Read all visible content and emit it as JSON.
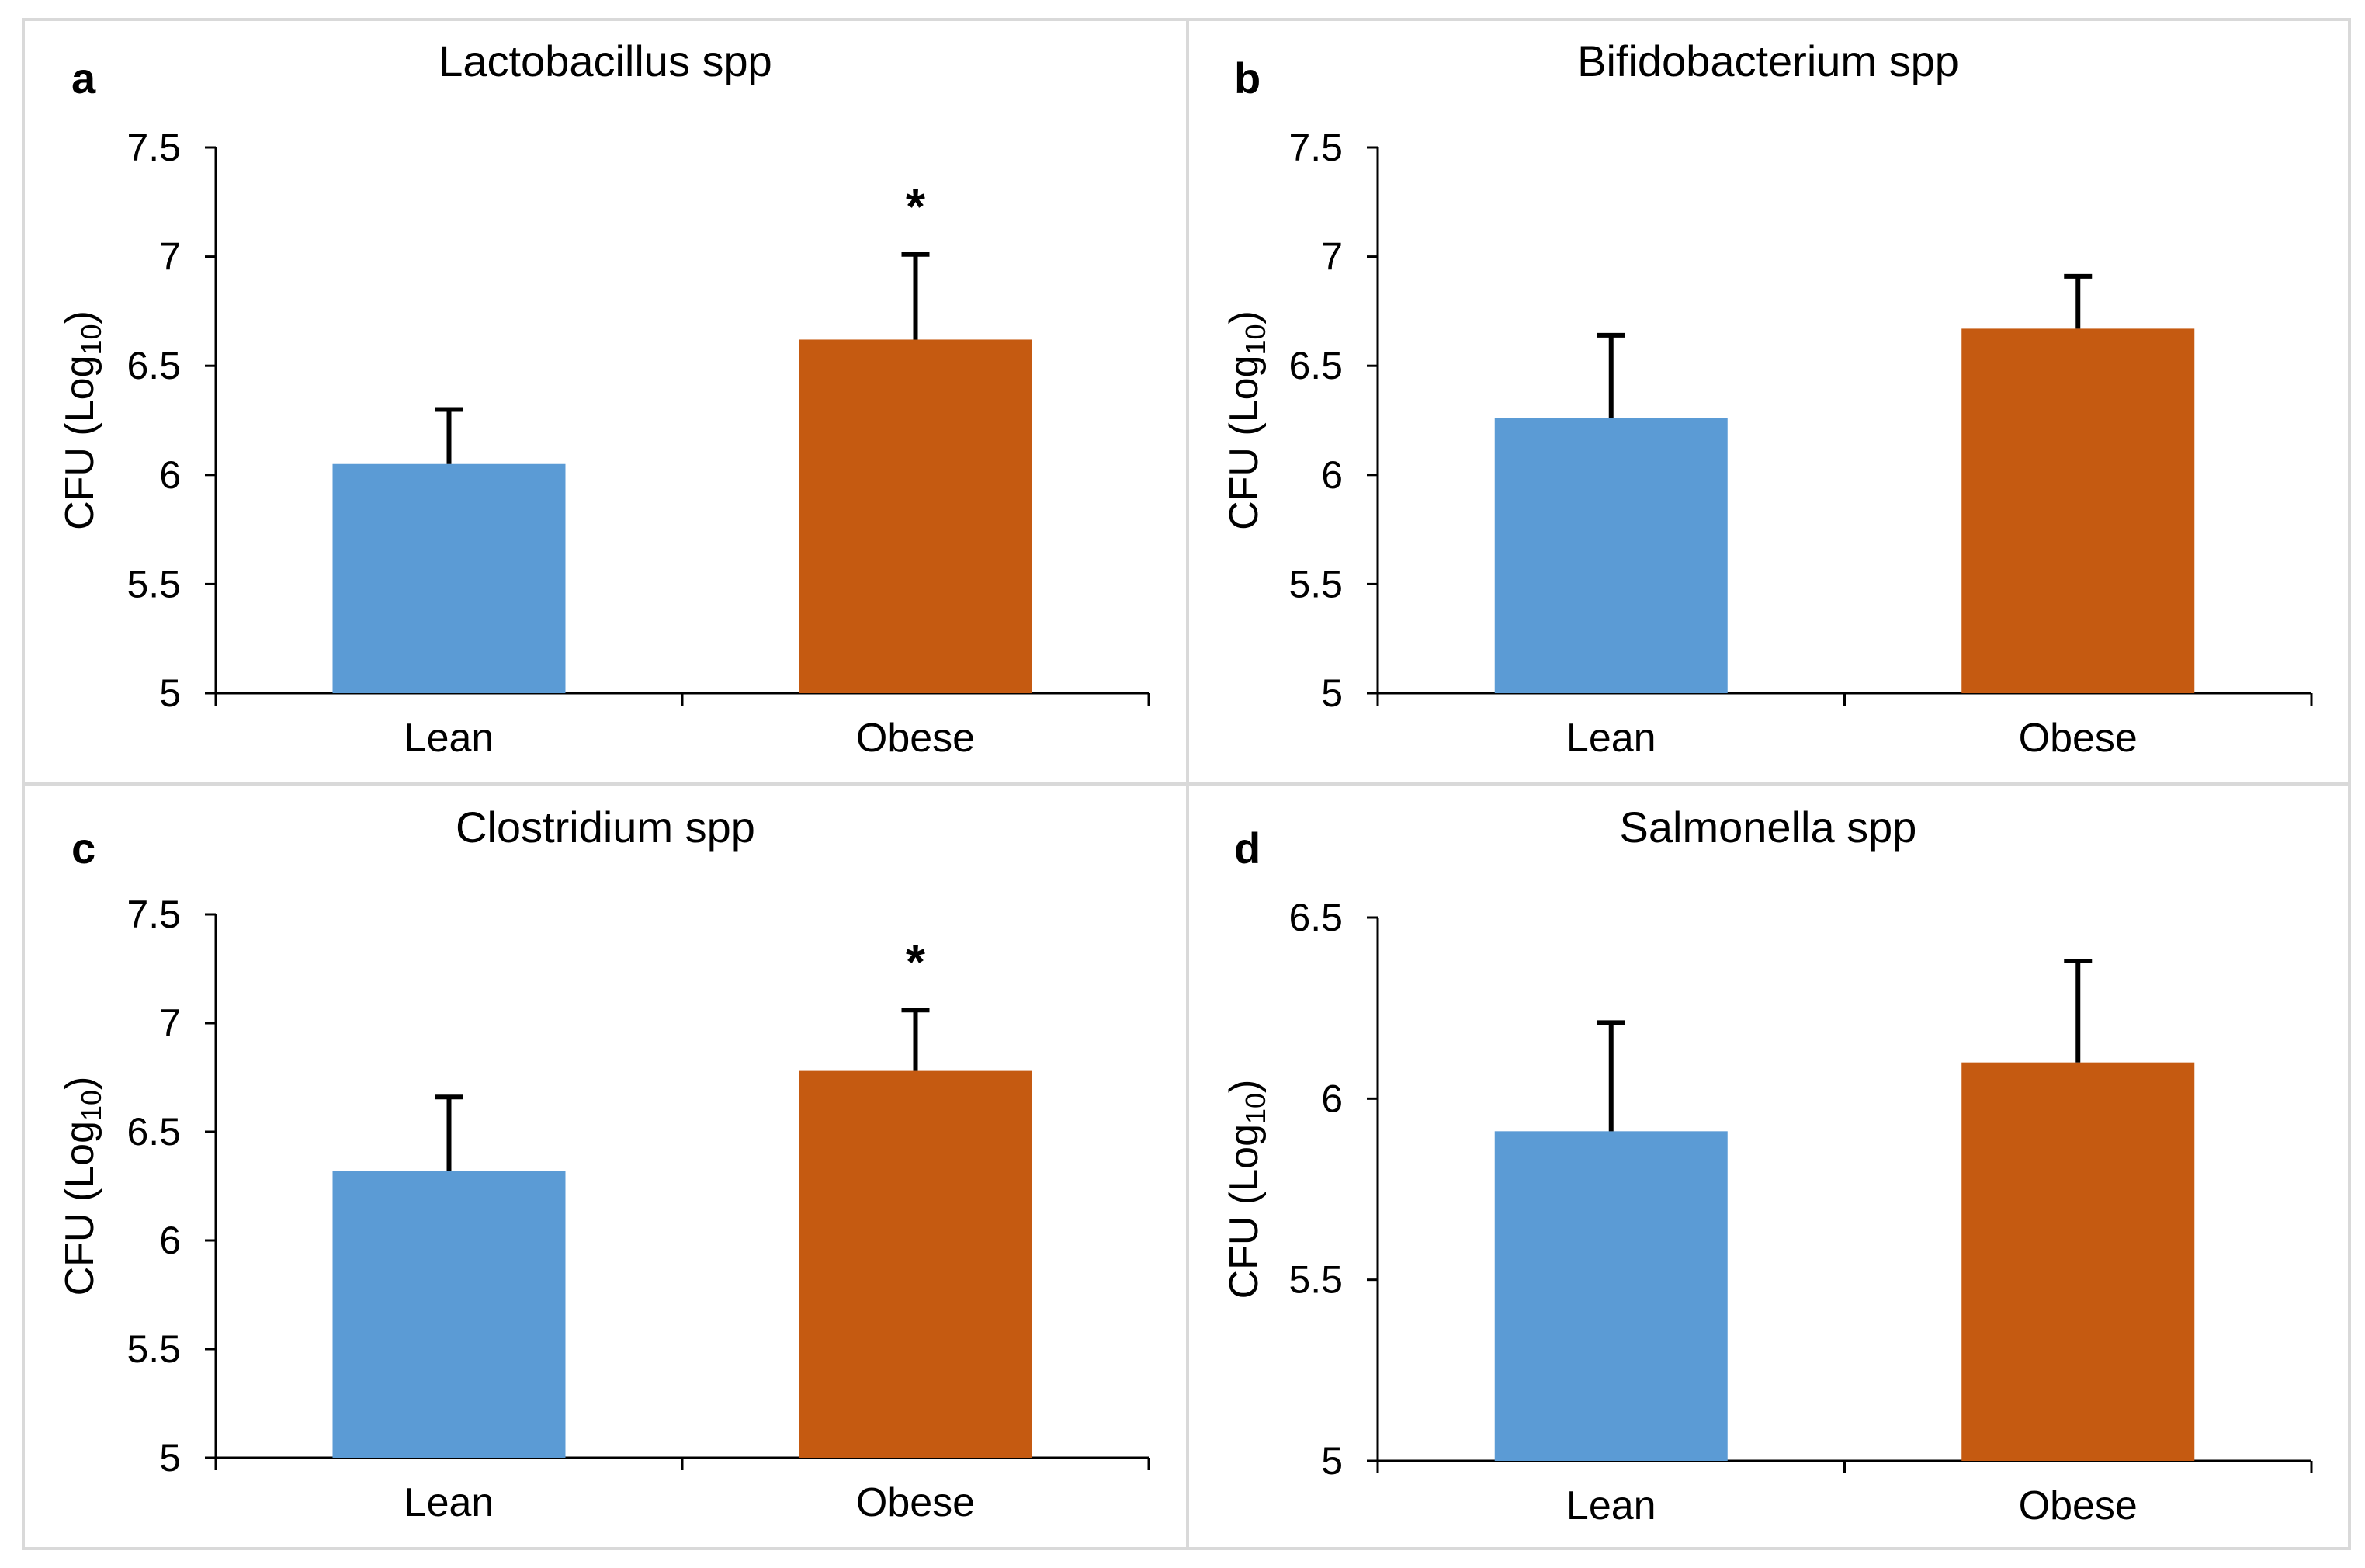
{
  "figure": {
    "ylabel_main": "CFU (Log",
    "ylabel_sub": "10",
    "ylabel_close": ")",
    "significance_marker": "*"
  },
  "colors": {
    "lean": "#5b9bd5",
    "obese": "#c55a11"
  },
  "chart_data": [
    {
      "panel": "a",
      "type": "bar",
      "title": "Lactobacillus spp",
      "categories": [
        "Lean",
        "Obese"
      ],
      "values": [
        6.05,
        6.62
      ],
      "errors": [
        0.25,
        0.39
      ],
      "significant": [
        false,
        true
      ],
      "yticks": [
        "5",
        "5.5",
        "6",
        "6.5",
        "7",
        "7.5"
      ],
      "ylim": [
        5,
        7.5
      ],
      "ylabel": "CFU (Log10)"
    },
    {
      "panel": "b",
      "type": "bar",
      "title": "Bifidobacterium spp",
      "categories": [
        "Lean",
        "Obese"
      ],
      "values": [
        6.26,
        6.67
      ],
      "errors": [
        0.38,
        0.24
      ],
      "significant": [
        false,
        false
      ],
      "yticks": [
        "5",
        "5.5",
        "6",
        "6.5",
        "7",
        "7.5"
      ],
      "ylim": [
        5,
        7.5
      ],
      "ylabel": "CFU (Log10)"
    },
    {
      "panel": "c",
      "type": "bar",
      "title": "Clostridium spp",
      "categories": [
        "Lean",
        "Obese"
      ],
      "values": [
        6.32,
        6.78
      ],
      "errors": [
        0.34,
        0.28
      ],
      "significant": [
        false,
        true
      ],
      "yticks": [
        "5",
        "5.5",
        "6",
        "6.5",
        "7",
        "7.5"
      ],
      "ylim": [
        5,
        7.5
      ],
      "ylabel": "CFU (Log10)"
    },
    {
      "panel": "d",
      "type": "bar",
      "title": "Salmonella spp",
      "categories": [
        "Lean",
        "Obese"
      ],
      "values": [
        5.91,
        6.1
      ],
      "errors": [
        0.3,
        0.28
      ],
      "significant": [
        false,
        false
      ],
      "yticks": [
        "5",
        "5.5",
        "6",
        "6.5"
      ],
      "ylim": [
        5,
        6.5
      ],
      "ylabel": "CFU (Log10)"
    }
  ]
}
